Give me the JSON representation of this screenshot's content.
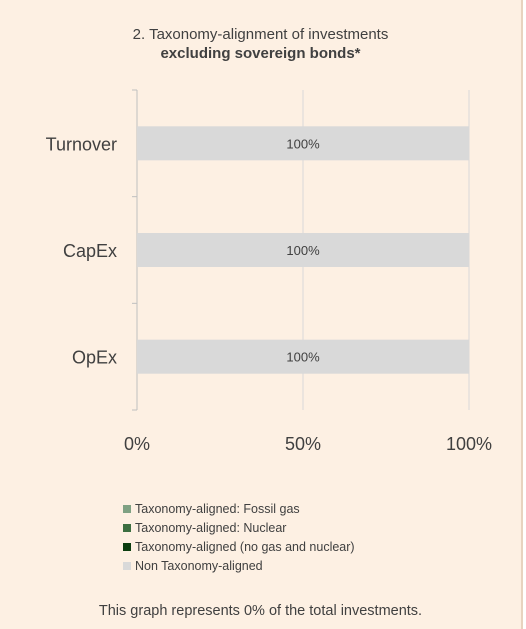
{
  "header": {
    "line1": "2. Taxonomy-alignment of investments",
    "line2": "excluding sovereign bonds*"
  },
  "chart_data": {
    "type": "bar",
    "orientation": "horizontal",
    "stacked": true,
    "categories": [
      "Turnover",
      "CapEx",
      "OpEx"
    ],
    "series": [
      {
        "name": "Taxonomy-aligned: Fossil gas",
        "color": "#7fa183",
        "values": [
          0,
          0,
          0
        ]
      },
      {
        "name": "Taxonomy-aligned: Nuclear",
        "color": "#3c6e40",
        "values": [
          0,
          0,
          0
        ]
      },
      {
        "name": "Taxonomy-aligned (no gas and nuclear)",
        "color": "#0b3d0f",
        "values": [
          0,
          0,
          0
        ]
      },
      {
        "name": "Non Taxonomy-aligned",
        "color": "#d9d9d9",
        "values": [
          100,
          100,
          100
        ]
      }
    ],
    "data_labels": [
      "100%",
      "100%",
      "100%"
    ],
    "x_ticks": [
      "0%",
      "50%",
      "100%"
    ],
    "xlim": [
      0,
      100
    ],
    "gridlines": "vertical",
    "legend_position": "bottom"
  },
  "footnote": "This graph represents 0% of the total investments."
}
